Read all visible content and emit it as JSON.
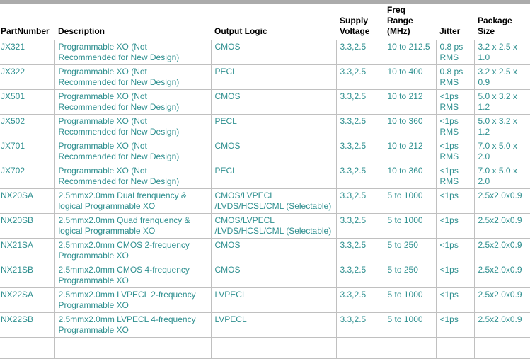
{
  "colors": {
    "cell_text": "#2E8F8F",
    "border": "#C0C0C0",
    "header_text": "#000000",
    "top_band": "#ABABAB"
  },
  "table": {
    "headers": [
      {
        "key": "part",
        "label": "PartNumber"
      },
      {
        "key": "desc",
        "label": "Description"
      },
      {
        "key": "logic",
        "label": "Output Logic"
      },
      {
        "key": "voltage",
        "label": "Supply\nVoltage"
      },
      {
        "key": "freq",
        "label": "Freq Range\n(MHz)"
      },
      {
        "key": "jitter",
        "label": "Jitter"
      },
      {
        "key": "package",
        "label": "Package\nSize"
      }
    ],
    "rows": [
      {
        "part": "JX321",
        "desc": "Programmable XO (Not\nRecommended for New Design)",
        "logic": "CMOS",
        "voltage": "3.3,2.5",
        "freq": "10 to 212.5",
        "jitter": "0.8 ps\nRMS",
        "package": "3.2 x 2.5 x\n1.0"
      },
      {
        "part": "JX322",
        "desc": "Programmable XO (Not\nRecommended for New Design)",
        "logic": "PECL",
        "voltage": "3.3,2.5",
        "freq": "10 to 400",
        "jitter": "0.8 ps\nRMS",
        "package": "3.2 x 2.5 x\n0.9"
      },
      {
        "part": "JX501",
        "desc": "Programmable XO (Not\nRecommended for New Design)",
        "logic": "CMOS",
        "voltage": "3.3,2.5",
        "freq": "10 to 212",
        "jitter": "<1ps\nRMS",
        "package": "5.0 x 3.2 x\n1.2"
      },
      {
        "part": "JX502",
        "desc": "Programmable XO (Not\nRecommended for New Design)",
        "logic": "PECL",
        "voltage": "3.3,2.5",
        "freq": "10 to 360",
        "jitter": "<1ps\nRMS",
        "package": "5.0 x 3.2 x\n1.2"
      },
      {
        "part": "JX701",
        "desc": "Programmable XO (Not\nRecommended for New Design)",
        "logic": "CMOS",
        "voltage": "3.3,2.5",
        "freq": "10 to 212",
        "jitter": "<1ps\nRMS",
        "package": "7.0 x 5.0 x\n2.0"
      },
      {
        "part": "JX702",
        "desc": "Programmable XO (Not\nRecommended for New Design)",
        "logic": "PECL",
        "voltage": "3.3,2.5",
        "freq": "10 to 360",
        "jitter": "<1ps\nRMS",
        "package": "7.0 x 5.0 x\n2.0"
      },
      {
        "part": "NX20SA",
        "desc": "2.5mmx2.0mm Dual frenquency &\nlogical Programmable XO",
        "logic": "CMOS/LVPECL\n/LVDS/HCSL/CML (Selectable)",
        "voltage": "3.3,2.5",
        "freq": "5 to 1000",
        "jitter": "<1ps",
        "package": "2.5x2.0x0.9"
      },
      {
        "part": "NX20SB",
        "desc": "2.5mmx2.0mm Quad frenquency &\nlogical Programmable XO",
        "logic": "CMOS/LVPECL\n/LVDS/HCSL/CML (Selectable)",
        "voltage": "3.3,2.5",
        "freq": "5 to 1000",
        "jitter": "<1ps",
        "package": "2.5x2.0x0.9"
      },
      {
        "part": "NX21SA",
        "desc": "2.5mmx2.0mm CMOS 2-frequency\nProgrammable XO",
        "logic": "CMOS",
        "voltage": "3.3,2.5",
        "freq": "5 to 250",
        "jitter": "<1ps",
        "package": "2.5x2.0x0.9"
      },
      {
        "part": "NX21SB",
        "desc": "2.5mmx2.0mm CMOS 4-frequency\nProgrammable XO",
        "logic": "CMOS",
        "voltage": "3.3,2.5",
        "freq": "5 to 250",
        "jitter": "<1ps",
        "package": "2.5x2.0x0.9"
      },
      {
        "part": "NX22SA",
        "desc": "2.5mmx2.0mm LVPECL 2-frequency\nProgrammable XO",
        "logic": "LVPECL",
        "voltage": "3.3,2.5",
        "freq": "5 to 1000",
        "jitter": "<1ps",
        "package": "2.5x2.0x0.9"
      },
      {
        "part": "NX22SB",
        "desc": "2.5mmx2.0mm LVPECL 4-frequency\nProgrammable XO",
        "logic": "LVPECL",
        "voltage": "3.3,2.5",
        "freq": "5 to 1000",
        "jitter": "<1ps",
        "package": "2.5x2.0x0.9"
      }
    ]
  }
}
